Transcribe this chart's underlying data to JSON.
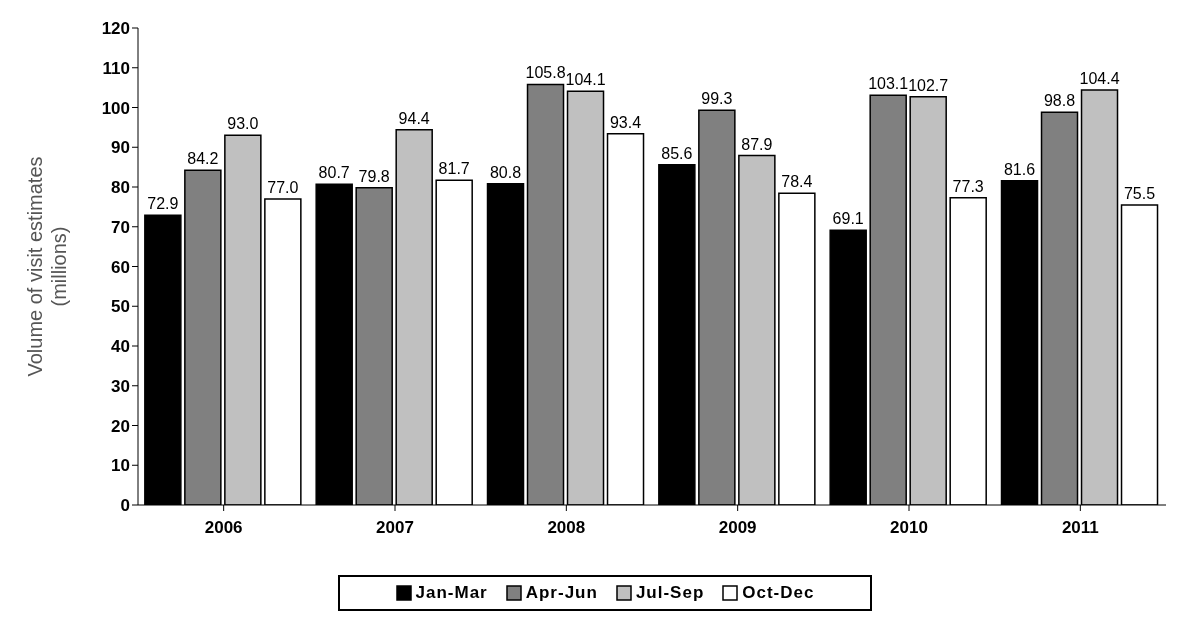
{
  "chart_data": {
    "type": "bar",
    "ylabel": "Volume of visit estimates (millions)",
    "categories": [
      "2006",
      "2007",
      "2008",
      "2009",
      "2010",
      "2011"
    ],
    "series": [
      {
        "name": "Jan-Mar",
        "color": "#000000",
        "values": [
          72.9,
          80.7,
          80.8,
          85.6,
          69.1,
          81.6
        ],
        "value_labels": [
          "72.9",
          "80.7",
          "80.8",
          "85.6",
          "69.1",
          "81.6"
        ]
      },
      {
        "name": "Apr-Jun",
        "color": "#808080",
        "values": [
          84.2,
          79.8,
          105.8,
          99.3,
          103.1,
          98.8
        ],
        "value_labels": [
          "84.2",
          "79.8",
          "105.8",
          "99.3",
          "103.1",
          "98.8"
        ]
      },
      {
        "name": "Jul-Sep",
        "color": "#c0c0c0",
        "values": [
          93.0,
          94.4,
          104.1,
          87.9,
          102.7,
          104.4
        ],
        "value_labels": [
          "93.0",
          "94.4",
          "104.1",
          "87.9",
          "102.7",
          "104.4"
        ]
      },
      {
        "name": "Oct-Dec",
        "color": "#ffffff",
        "values": [
          77.0,
          81.7,
          93.4,
          78.4,
          77.3,
          75.5
        ],
        "value_labels": [
          "77.0",
          "81.7",
          "93.4",
          "78.4",
          "77.3",
          "75.5"
        ]
      }
    ],
    "ylim": [
      0,
      120
    ],
    "yticks": [
      0,
      10,
      20,
      30,
      40,
      50,
      60,
      70,
      80,
      90,
      100,
      110,
      120
    ],
    "legend": "bottom"
  }
}
